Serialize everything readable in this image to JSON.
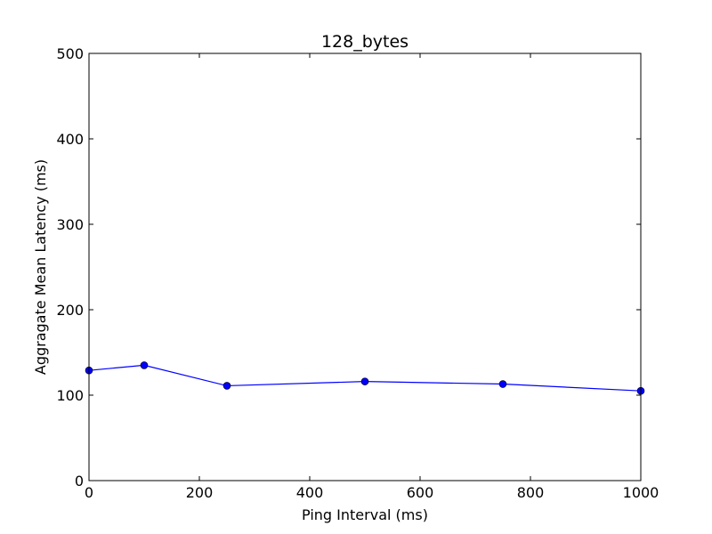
{
  "chart_data": {
    "type": "line",
    "title": "128_bytes",
    "xlabel": "Ping Interval (ms)",
    "ylabel": "Aggragate Mean Latency (ms)",
    "xlim": [
      0,
      1000
    ],
    "ylim": [
      0,
      500
    ],
    "xticks": [
      0,
      200,
      400,
      600,
      800,
      1000
    ],
    "yticks": [
      0,
      100,
      200,
      300,
      400,
      500
    ],
    "grid": false,
    "series": [
      {
        "x": [
          0,
          100,
          250,
          500,
          750,
          1000
        ],
        "y": [
          129,
          135,
          111,
          116,
          113,
          105
        ],
        "color": "#0000ff",
        "marker": "circle"
      }
    ]
  }
}
